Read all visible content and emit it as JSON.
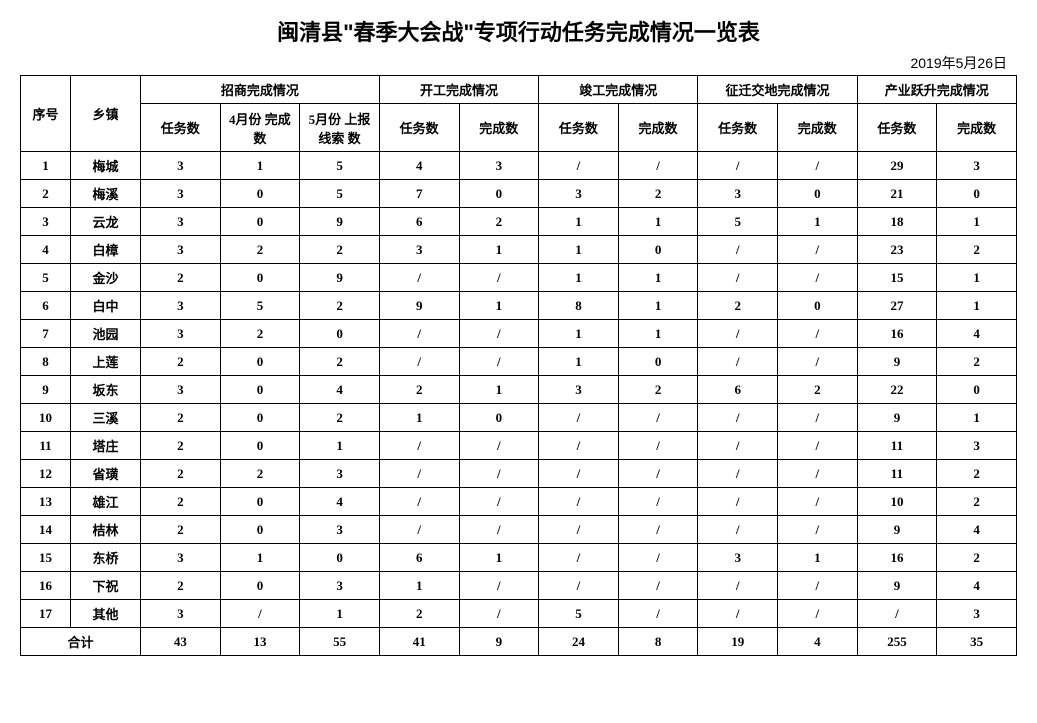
{
  "title": "闽清县\"春季大会战\"专项行动任务完成情况一览表",
  "date": "2019年5月26日",
  "headers": {
    "seq": "序号",
    "town": "乡镇",
    "group1": "招商完成情况",
    "group2": "开工完成情况",
    "group3": "竣工完成情况",
    "group4": "征迁交地完成情况",
    "group5": "产业跃升完成情况",
    "sub_task": "任务数",
    "sub_done": "完成数",
    "sub_apr": "4月份\n完成数",
    "sub_may": "5月份\n上报线索\n数"
  },
  "rows": [
    {
      "seq": "1",
      "town": "梅城",
      "c": [
        "3",
        "1",
        "5",
        "4",
        "3",
        "/",
        "/",
        "/",
        "/",
        "29",
        "3"
      ]
    },
    {
      "seq": "2",
      "town": "梅溪",
      "c": [
        "3",
        "0",
        "5",
        "7",
        "0",
        "3",
        "2",
        "3",
        "0",
        "21",
        "0"
      ]
    },
    {
      "seq": "3",
      "town": "云龙",
      "c": [
        "3",
        "0",
        "9",
        "6",
        "2",
        "1",
        "1",
        "5",
        "1",
        "18",
        "1"
      ]
    },
    {
      "seq": "4",
      "town": "白樟",
      "c": [
        "3",
        "2",
        "2",
        "3",
        "1",
        "1",
        "0",
        "/",
        "/",
        "23",
        "2"
      ]
    },
    {
      "seq": "5",
      "town": "金沙",
      "c": [
        "2",
        "0",
        "9",
        "/",
        "/",
        "1",
        "1",
        "/",
        "/",
        "15",
        "1"
      ]
    },
    {
      "seq": "6",
      "town": "白中",
      "c": [
        "3",
        "5",
        "2",
        "9",
        "1",
        "8",
        "1",
        "2",
        "0",
        "27",
        "1"
      ]
    },
    {
      "seq": "7",
      "town": "池园",
      "c": [
        "3",
        "2",
        "0",
        "/",
        "/",
        "1",
        "1",
        "/",
        "/",
        "16",
        "4"
      ]
    },
    {
      "seq": "8",
      "town": "上莲",
      "c": [
        "2",
        "0",
        "2",
        "/",
        "/",
        "1",
        "0",
        "/",
        "/",
        "9",
        "2"
      ]
    },
    {
      "seq": "9",
      "town": "坂东",
      "c": [
        "3",
        "0",
        "4",
        "2",
        "1",
        "3",
        "2",
        "6",
        "2",
        "22",
        "0"
      ]
    },
    {
      "seq": "10",
      "town": "三溪",
      "c": [
        "2",
        "0",
        "2",
        "1",
        "0",
        "/",
        "/",
        "/",
        "/",
        "9",
        "1"
      ]
    },
    {
      "seq": "11",
      "town": "塔庄",
      "c": [
        "2",
        "0",
        "1",
        "/",
        "/",
        "/",
        "/",
        "/",
        "/",
        "11",
        "3"
      ]
    },
    {
      "seq": "12",
      "town": "省璜",
      "c": [
        "2",
        "2",
        "3",
        "/",
        "/",
        "/",
        "/",
        "/",
        "/",
        "11",
        "2"
      ]
    },
    {
      "seq": "13",
      "town": "雄江",
      "c": [
        "2",
        "0",
        "4",
        "/",
        "/",
        "/",
        "/",
        "/",
        "/",
        "10",
        "2"
      ]
    },
    {
      "seq": "14",
      "town": "桔林",
      "c": [
        "2",
        "0",
        "3",
        "/",
        "/",
        "/",
        "/",
        "/",
        "/",
        "9",
        "4"
      ]
    },
    {
      "seq": "15",
      "town": "东桥",
      "c": [
        "3",
        "1",
        "0",
        "6",
        "1",
        "/",
        "/",
        "3",
        "1",
        "16",
        "2"
      ]
    },
    {
      "seq": "16",
      "town": "下祝",
      "c": [
        "2",
        "0",
        "3",
        "1",
        "/",
        "/",
        "/",
        "/",
        "/",
        "9",
        "4"
      ]
    },
    {
      "seq": "17",
      "town": "其他",
      "c": [
        "3",
        "/",
        "1",
        "2",
        "/",
        "5",
        "/",
        "/",
        "/",
        "/",
        "3"
      ]
    }
  ],
  "total": {
    "label": "合计",
    "c": [
      "43",
      "13",
      "55",
      "41",
      "9",
      "24",
      "8",
      "19",
      "4",
      "255",
      "35"
    ]
  }
}
